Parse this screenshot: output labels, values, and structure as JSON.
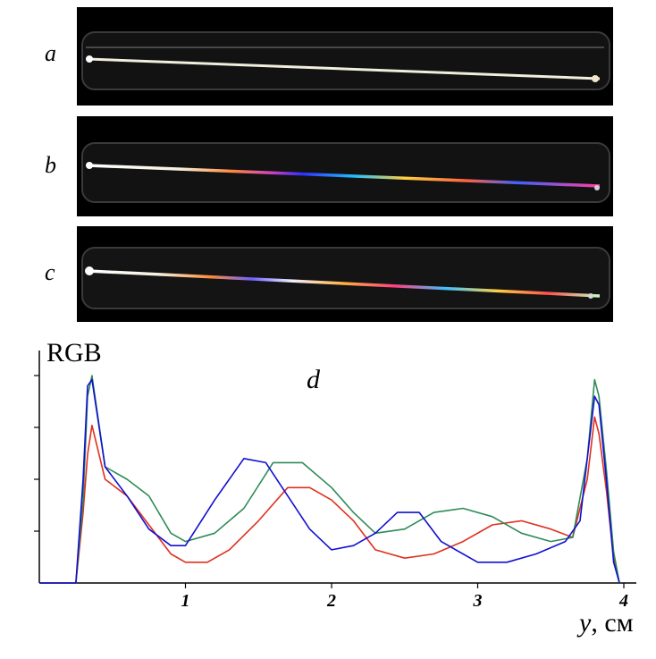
{
  "panels": [
    {
      "label": "a",
      "spectrum": false
    },
    {
      "label": "b",
      "spectrum": true
    },
    {
      "label": "c",
      "spectrum": true
    }
  ],
  "chart_data": {
    "type": "line",
    "title": "",
    "panel_label": "d",
    "ylabel": "RGB",
    "xlabel_var": "y",
    "xlabel_unit": ", см",
    "xlim": [
      0,
      4
    ],
    "ylim": [
      0,
      1
    ],
    "xticks": [
      1,
      2,
      3,
      4
    ],
    "grid": false,
    "series": [
      {
        "color": "#e0301e",
        "x": [
          0,
          0.25,
          0.3,
          0.33,
          0.36,
          0.45,
          0.6,
          0.75,
          0.9,
          1.0,
          1.15,
          1.3,
          1.5,
          1.7,
          1.85,
          2.0,
          2.15,
          2.3,
          2.5,
          2.7,
          2.9,
          3.1,
          3.3,
          3.5,
          3.65,
          3.75,
          3.8,
          3.83,
          3.88,
          3.93,
          3.97
        ],
        "y": [
          0,
          0,
          0.34,
          0.62,
          0.76,
          0.5,
          0.42,
          0.28,
          0.14,
          0.1,
          0.1,
          0.16,
          0.3,
          0.46,
          0.46,
          0.4,
          0.3,
          0.16,
          0.12,
          0.14,
          0.2,
          0.28,
          0.3,
          0.26,
          0.22,
          0.5,
          0.8,
          0.72,
          0.45,
          0.12,
          0
        ]
      },
      {
        "color": "#2e8b57",
        "x": [
          0,
          0.25,
          0.3,
          0.33,
          0.36,
          0.45,
          0.6,
          0.75,
          0.9,
          1.0,
          1.2,
          1.4,
          1.6,
          1.8,
          2.0,
          2.15,
          2.3,
          2.5,
          2.7,
          2.9,
          3.1,
          3.3,
          3.5,
          3.65,
          3.75,
          3.8,
          3.83,
          3.88,
          3.93,
          3.97
        ],
        "y": [
          0,
          0,
          0.4,
          0.9,
          1.0,
          0.56,
          0.5,
          0.42,
          0.24,
          0.2,
          0.24,
          0.36,
          0.58,
          0.58,
          0.46,
          0.34,
          0.24,
          0.26,
          0.34,
          0.36,
          0.32,
          0.24,
          0.2,
          0.22,
          0.6,
          0.98,
          0.9,
          0.55,
          0.15,
          0
        ]
      },
      {
        "color": "#1010d0",
        "x": [
          0,
          0.25,
          0.3,
          0.33,
          0.36,
          0.45,
          0.6,
          0.75,
          0.9,
          1.0,
          1.2,
          1.4,
          1.55,
          1.7,
          1.85,
          2.0,
          2.15,
          2.3,
          2.45,
          2.6,
          2.75,
          3.0,
          3.2,
          3.4,
          3.6,
          3.7,
          3.75,
          3.8,
          3.83,
          3.88,
          3.93,
          3.97
        ],
        "y": [
          0,
          0,
          0.5,
          0.95,
          0.98,
          0.56,
          0.42,
          0.26,
          0.18,
          0.18,
          0.4,
          0.6,
          0.58,
          0.42,
          0.26,
          0.16,
          0.18,
          0.24,
          0.34,
          0.34,
          0.2,
          0.1,
          0.1,
          0.14,
          0.2,
          0.3,
          0.6,
          0.9,
          0.86,
          0.5,
          0.1,
          0
        ]
      }
    ]
  }
}
